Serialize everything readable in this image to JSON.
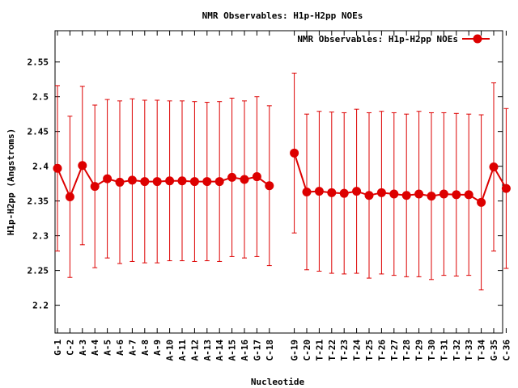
{
  "chart_data": {
    "type": "line",
    "title": "NMR Observables: H1p-H2pp NOEs",
    "xlabel": "Nucleotide",
    "ylabel": "H1p-H2pp (Angstroms)",
    "ylim": [
      2.16,
      2.595
    ],
    "yticks": [
      "2.2",
      "2.25",
      "2.3",
      "2.35",
      "2.4",
      "2.45",
      "2.5",
      "2.55"
    ],
    "grid": false,
    "legend_position": "top-right",
    "color": "#dd0000",
    "categories": [
      "G-1",
      "C-2",
      "A-3",
      "A-4",
      "A-5",
      "A-6",
      "A-7",
      "A-8",
      "A-9",
      "A-10",
      "A-11",
      "A-12",
      "A-13",
      "A-14",
      "A-15",
      "A-16",
      "G-17",
      "C-18",
      "G-19",
      "C-20",
      "T-21",
      "T-22",
      "T-23",
      "T-24",
      "T-25",
      "T-26",
      "T-27",
      "T-28",
      "T-29",
      "T-30",
      "T-31",
      "T-32",
      "T-33",
      "T-34",
      "G-35",
      "C-36"
    ],
    "series": [
      {
        "name": "NMR Observables: H1p-H2pp NOEs",
        "segments": [
          {
            "x": [
              "G-1",
              "C-2",
              "A-3",
              "A-4",
              "A-5",
              "A-6",
              "A-7",
              "A-8",
              "A-9",
              "A-10",
              "A-11",
              "A-12",
              "A-13",
              "A-14",
              "A-15",
              "A-16",
              "G-17",
              "C-18"
            ],
            "y": [
              2.397,
              2.356,
              2.401,
              2.371,
              2.382,
              2.377,
              2.38,
              2.378,
              2.378,
              2.379,
              2.379,
              2.378,
              2.378,
              2.378,
              2.384,
              2.381,
              2.385,
              2.372
            ],
            "err": [
              0.119,
              0.116,
              0.114,
              0.117,
              0.114,
              0.117,
              0.117,
              0.117,
              0.117,
              0.115,
              0.115,
              0.115,
              0.114,
              0.115,
              0.114,
              0.113,
              0.115,
              0.115
            ]
          },
          {
            "x": [
              "G-19",
              "C-20",
              "T-21",
              "T-22",
              "T-23",
              "T-24",
              "T-25",
              "T-26",
              "T-27",
              "T-28",
              "T-29",
              "T-30",
              "T-31",
              "T-32",
              "T-33",
              "T-34",
              "G-35",
              "C-36"
            ],
            "y": [
              2.419,
              2.363,
              2.364,
              2.362,
              2.361,
              2.364,
              2.358,
              2.362,
              2.36,
              2.358,
              2.36,
              2.357,
              2.36,
              2.359,
              2.359,
              2.348,
              2.399,
              2.368
            ],
            "err": [
              0.115,
              0.112,
              0.115,
              0.116,
              0.116,
              0.118,
              0.119,
              0.117,
              0.117,
              0.117,
              0.119,
              0.12,
              0.117,
              0.117,
              0.116,
              0.126,
              0.121,
              0.115
            ]
          }
        ]
      }
    ]
  }
}
